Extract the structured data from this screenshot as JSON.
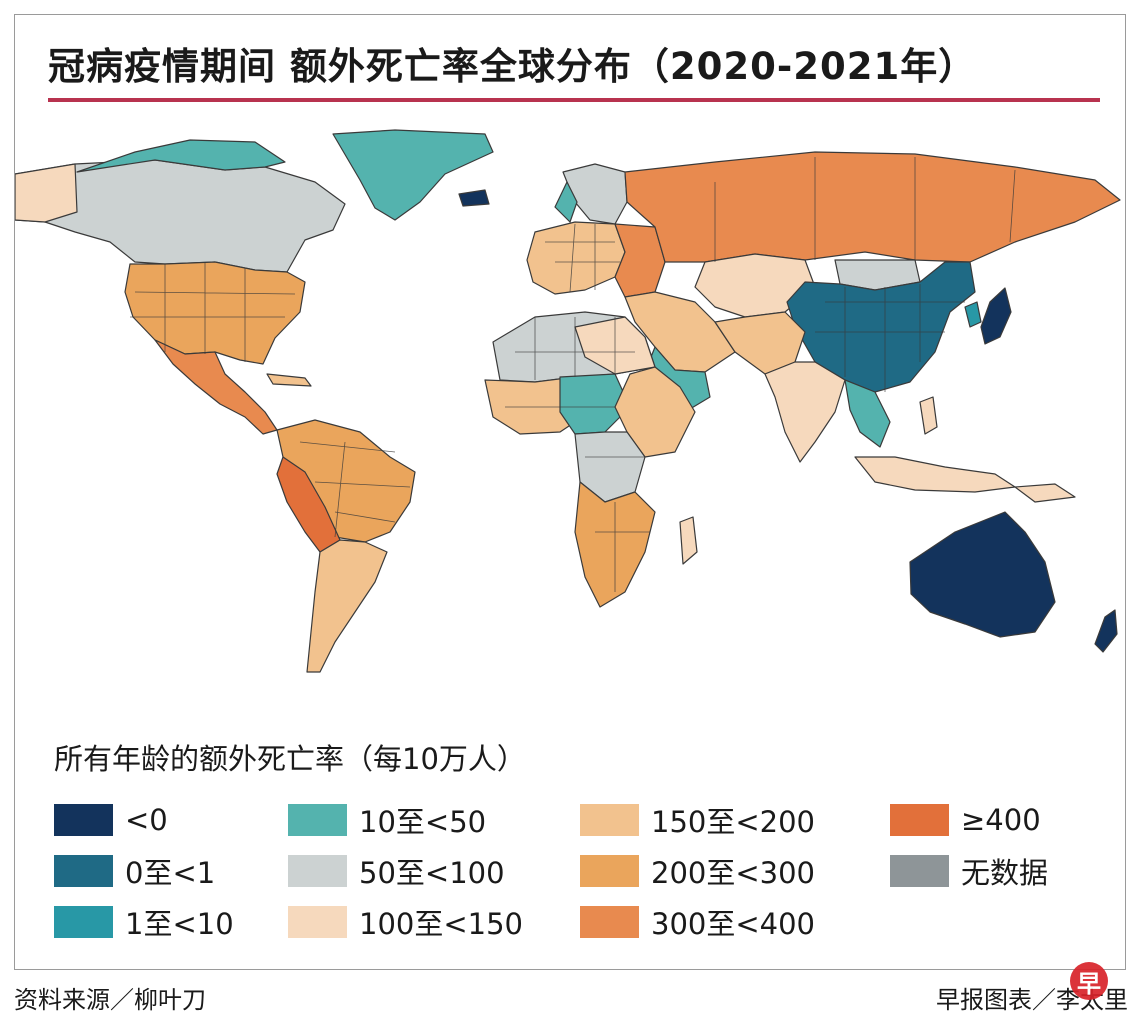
{
  "title": "冠病疫情期间 额外死亡率全球分布（2020-2021年）",
  "legend": {
    "title": "所有年龄的额外死亡率（每10万人）",
    "items": [
      {
        "label": "<0",
        "color": "#13335c"
      },
      {
        "label": "0至<1",
        "color": "#1f6a85"
      },
      {
        "label": "1至<10",
        "color": "#2898a6"
      },
      {
        "label": "10至<50",
        "color": "#54b3ae"
      },
      {
        "label": "50至<100",
        "color": "#ccd2d2"
      },
      {
        "label": "100至<150",
        "color": "#f6d9bd"
      },
      {
        "label": "150至<200",
        "color": "#f2c28e"
      },
      {
        "label": "200至<300",
        "color": "#eaa55c"
      },
      {
        "label": "300至<400",
        "color": "#e88a4f"
      },
      {
        "label": "≥400",
        "color": "#e2703a"
      },
      {
        "label": "无数据",
        "color": "#8e9598"
      }
    ]
  },
  "source": "资料来源／柳叶刀",
  "credit": "早报图表／李太里",
  "logo_text": "早"
}
